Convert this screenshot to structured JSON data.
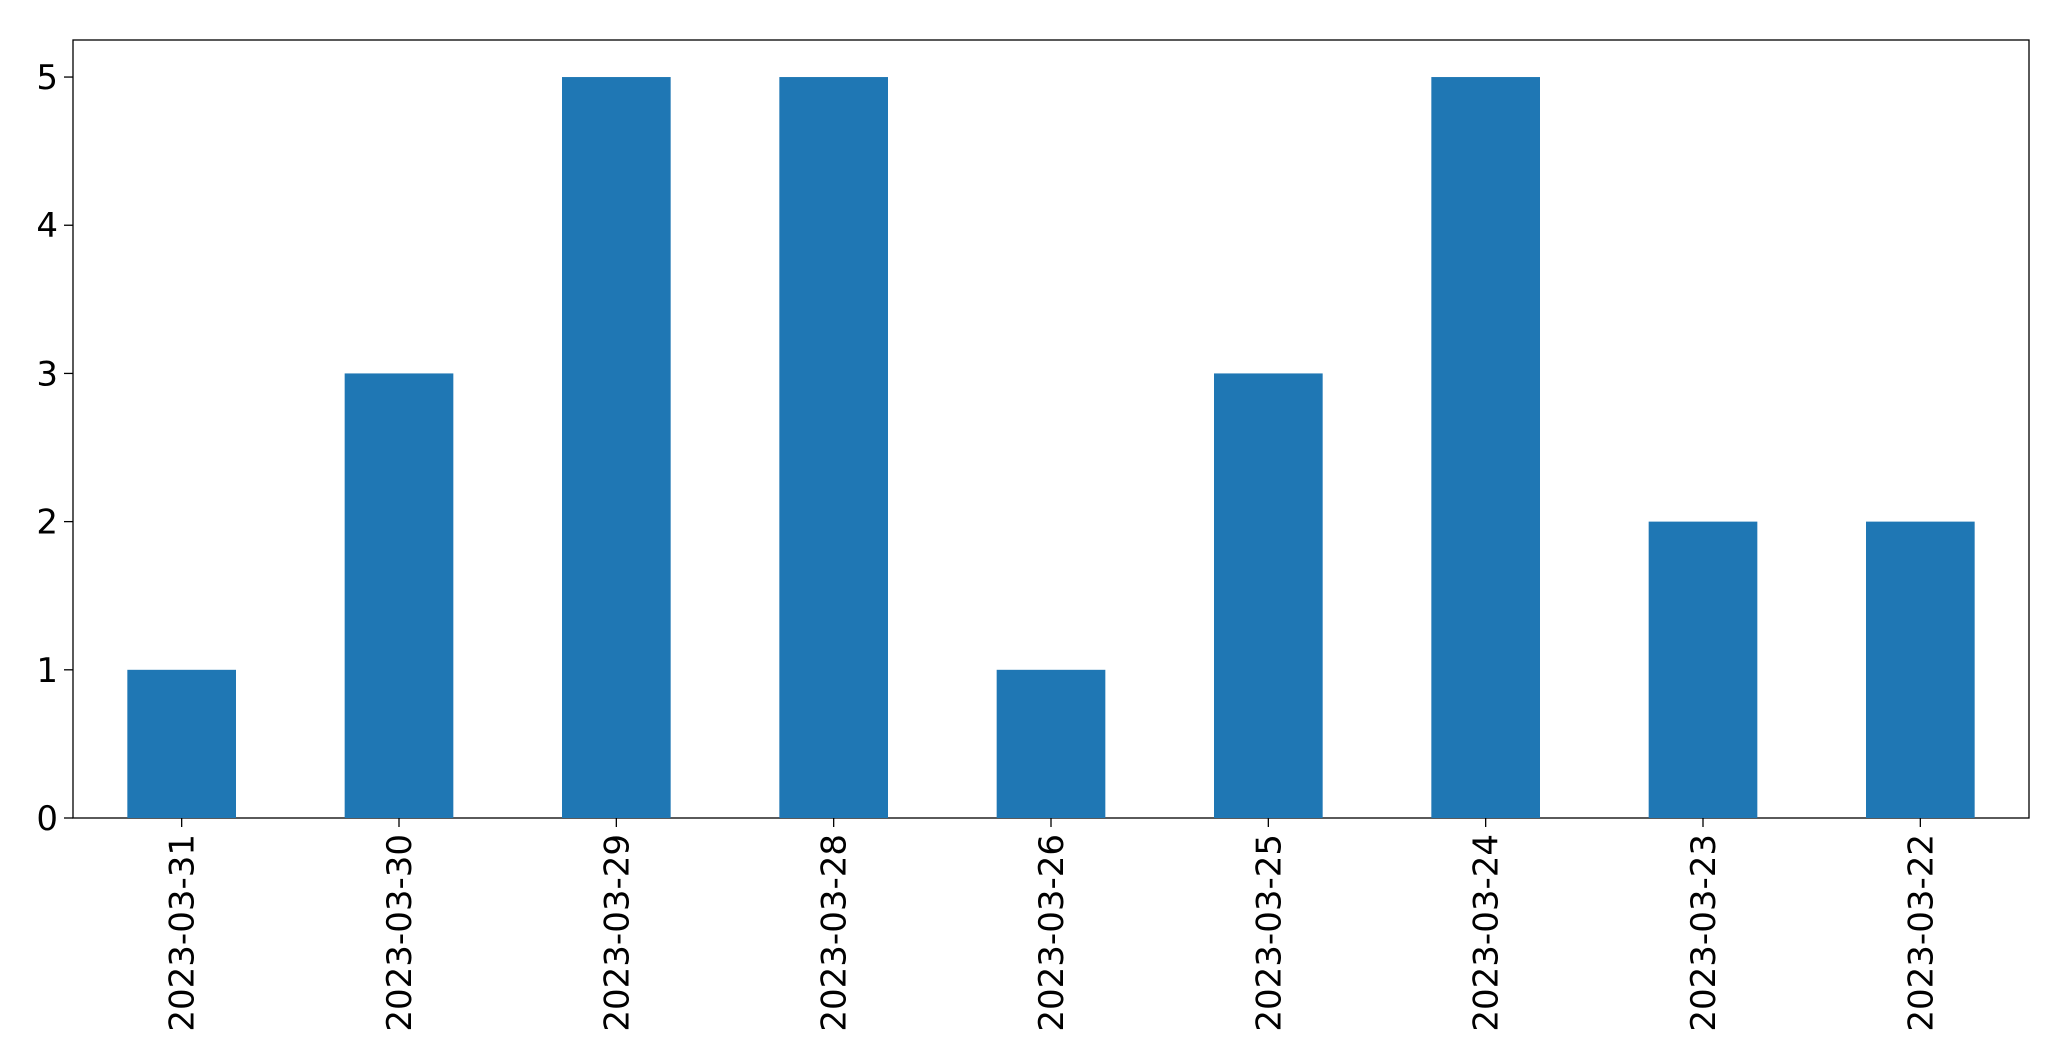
{
  "chart_data": {
    "type": "bar",
    "categories": [
      "2023-03-31",
      "2023-03-30",
      "2023-03-29",
      "2023-03-28",
      "2023-03-26",
      "2023-03-25",
      "2023-03-24",
      "2023-03-23",
      "2023-03-22"
    ],
    "values": [
      1,
      3,
      5,
      5,
      1,
      3,
      5,
      2,
      2
    ],
    "color": "#1f77b4",
    "ylim": [
      0,
      5.25
    ],
    "yticks": [
      0,
      1,
      2,
      3,
      4,
      5
    ],
    "grid": false
  }
}
